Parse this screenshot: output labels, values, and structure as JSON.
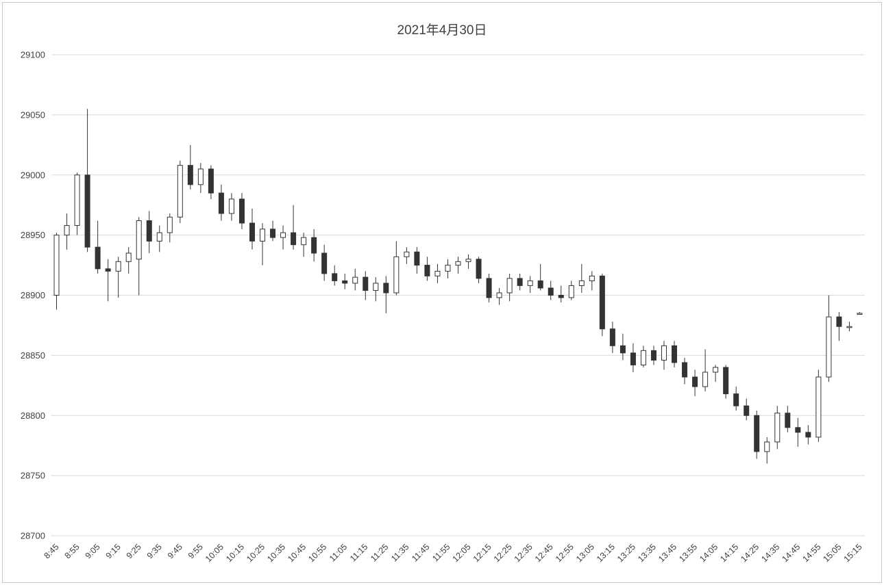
{
  "window": {
    "title": "2021年4月30日"
  },
  "colors": {
    "grid": "#d9d9d9",
    "axis_text": "#404040",
    "candle_stroke": "#333333",
    "candle_up_fill": "#ffffff",
    "candle_down_fill": "#333333",
    "frame_border": "#c9c9c9",
    "background": "#ffffff"
  },
  "chart_data": {
    "type": "candlestick",
    "title": "2021年4月30日",
    "ylabel": "",
    "xlabel": "",
    "grid": "horizontal",
    "legend": "none",
    "y_axis": {
      "min": 28700,
      "max": 29100,
      "step": 50,
      "tick_labels": [
        "28700",
        "28750",
        "28800",
        "28850",
        "28900",
        "28950",
        "29000",
        "29050",
        "29100"
      ]
    },
    "x_tick_labels": [
      "8:45",
      "8:55",
      "9:05",
      "9:15",
      "9:25",
      "9:35",
      "9:45",
      "9:55",
      "10:05",
      "10:15",
      "10:25",
      "10:35",
      "10:45",
      "10:55",
      "11:05",
      "11:15",
      "11:25",
      "11:35",
      "11:45",
      "11:55",
      "12:05",
      "12:15",
      "12:25",
      "12:35",
      "12:45",
      "12:55",
      "13:05",
      "13:15",
      "13:25",
      "13:35",
      "13:45",
      "13:55",
      "14:05",
      "14:15",
      "14:25",
      "14:35",
      "14:45",
      "14:55",
      "15:05",
      "15:15"
    ],
    "x_label_every_nth_candle": 2,
    "columns": [
      "time",
      "open",
      "high",
      "low",
      "close"
    ],
    "series": [
      [
        "8:45",
        28900,
        28952,
        28888,
        28950
      ],
      [
        "8:50",
        28950,
        28968,
        28938,
        28958
      ],
      [
        "8:55",
        28958,
        29002,
        28950,
        29000
      ],
      [
        "9:00",
        29000,
        29055,
        28936,
        28940
      ],
      [
        "9:05",
        28940,
        28962,
        28918,
        28922
      ],
      [
        "9:10",
        28922,
        28930,
        28895,
        28920
      ],
      [
        "9:15",
        28920,
        28932,
        28898,
        28928
      ],
      [
        "9:20",
        28928,
        28940,
        28918,
        28935
      ],
      [
        "9:25",
        28930,
        28965,
        28900,
        28962
      ],
      [
        "9:30",
        28962,
        28970,
        28935,
        28945
      ],
      [
        "9:35",
        28945,
        28958,
        28936,
        28952
      ],
      [
        "9:40",
        28952,
        28968,
        28944,
        28965
      ],
      [
        "9:45",
        28965,
        29012,
        28960,
        29008
      ],
      [
        "9:50",
        29008,
        29025,
        28988,
        28992
      ],
      [
        "9:55",
        28992,
        29010,
        28985,
        29005
      ],
      [
        "10:00",
        29005,
        29008,
        28980,
        28985
      ],
      [
        "10:05",
        28985,
        28992,
        28962,
        28968
      ],
      [
        "10:10",
        28968,
        28985,
        28962,
        28980
      ],
      [
        "10:15",
        28980,
        28985,
        28955,
        28960
      ],
      [
        "10:20",
        28960,
        28972,
        28938,
        28945
      ],
      [
        "10:25",
        28945,
        28960,
        28925,
        28955
      ],
      [
        "10:30",
        28955,
        28962,
        28945,
        28948
      ],
      [
        "10:35",
        28948,
        28958,
        28938,
        28952
      ],
      [
        "10:40",
        28952,
        28975,
        28938,
        28942
      ],
      [
        "10:45",
        28942,
        28952,
        28932,
        28948
      ],
      [
        "10:50",
        28948,
        28955,
        28928,
        28935
      ],
      [
        "10:55",
        28935,
        28942,
        28912,
        28918
      ],
      [
        "11:00",
        28918,
        28925,
        28908,
        28912
      ],
      [
        "11:05",
        28912,
        28918,
        28905,
        28910
      ],
      [
        "11:10",
        28910,
        28922,
        28904,
        28915
      ],
      [
        "11:15",
        28915,
        28920,
        28896,
        28904
      ],
      [
        "11:20",
        28904,
        28915,
        28895,
        28910
      ],
      [
        "11:25",
        28910,
        28916,
        28885,
        28902
      ],
      [
        "11:30",
        28902,
        28945,
        28900,
        28932
      ],
      [
        "11:35",
        28932,
        28940,
        28926,
        28936
      ],
      [
        "11:40",
        28936,
        28940,
        28918,
        28925
      ],
      [
        "11:45",
        28925,
        28932,
        28912,
        28916
      ],
      [
        "11:50",
        28916,
        28926,
        28910,
        28920
      ],
      [
        "11:55",
        28920,
        28930,
        28914,
        28925
      ],
      [
        "12:00",
        28925,
        28932,
        28918,
        28928
      ],
      [
        "12:05",
        28928,
        28934,
        28922,
        28930
      ],
      [
        "12:10",
        28930,
        28932,
        28910,
        28914
      ],
      [
        "12:15",
        28914,
        28918,
        28894,
        28898
      ],
      [
        "12:20",
        28898,
        28906,
        28892,
        28902
      ],
      [
        "12:25",
        28902,
        28918,
        28895,
        28914
      ],
      [
        "12:30",
        28914,
        28918,
        28904,
        28908
      ],
      [
        "12:35",
        28908,
        28916,
        28902,
        28912
      ],
      [
        "12:40",
        28912,
        28926,
        28904,
        28906
      ],
      [
        "12:45",
        28906,
        28912,
        28896,
        28900
      ],
      [
        "12:50",
        28900,
        28908,
        28894,
        28898
      ],
      [
        "12:55",
        28898,
        28912,
        28896,
        28908
      ],
      [
        "13:00",
        28908,
        28926,
        28902,
        28912
      ],
      [
        "13:05",
        28912,
        28920,
        28904,
        28916
      ],
      [
        "13:10",
        28916,
        28918,
        28866,
        28872
      ],
      [
        "13:15",
        28872,
        28878,
        28852,
        28858
      ],
      [
        "13:20",
        28858,
        28868,
        28846,
        28852
      ],
      [
        "13:25",
        28852,
        28860,
        28836,
        28842
      ],
      [
        "13:30",
        28842,
        28858,
        28840,
        28854
      ],
      [
        "13:35",
        28854,
        28858,
        28842,
        28846
      ],
      [
        "13:40",
        28846,
        28862,
        28838,
        28858
      ],
      [
        "13:45",
        28858,
        28862,
        28840,
        28844
      ],
      [
        "13:50",
        28844,
        28848,
        28826,
        28832
      ],
      [
        "13:55",
        28832,
        28838,
        28816,
        28824
      ],
      [
        "14:00",
        28824,
        28855,
        28820,
        28836
      ],
      [
        "14:05",
        28836,
        28842,
        28828,
        28840
      ],
      [
        "14:10",
        28840,
        28842,
        28814,
        28818
      ],
      [
        "14:15",
        28818,
        28824,
        28804,
        28808
      ],
      [
        "14:20",
        28808,
        28814,
        28796,
        28800
      ],
      [
        "14:25",
        28800,
        28804,
        28764,
        28770
      ],
      [
        "14:30",
        28770,
        28782,
        28760,
        28778
      ],
      [
        "14:35",
        28778,
        28808,
        28772,
        28802
      ],
      [
        "14:40",
        28802,
        28808,
        28786,
        28790
      ],
      [
        "14:45",
        28790,
        28798,
        28774,
        28786
      ],
      [
        "14:50",
        28786,
        28792,
        28776,
        28782
      ],
      [
        "14:55",
        28782,
        28838,
        28778,
        28832
      ],
      [
        "15:00",
        28832,
        28900,
        28828,
        28882
      ],
      [
        "15:05",
        28882,
        28886,
        28862,
        28874
      ],
      [
        "15:10",
        28874,
        28878,
        28870,
        28874
      ],
      [
        "15:15",
        28885,
        28886,
        28884,
        28885
      ]
    ]
  }
}
